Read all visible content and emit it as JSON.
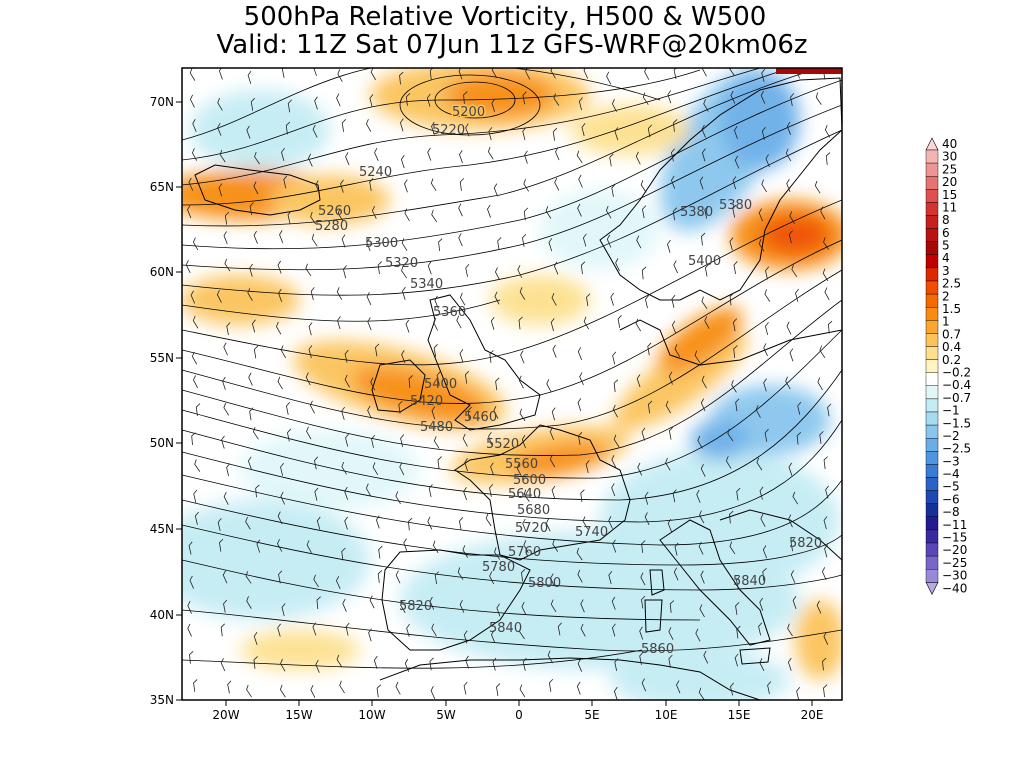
{
  "title": {
    "line1": "500hPa Relative Vorticity, H500 & W500",
    "line2": "Valid: 11Z Sat 07Jun 11z GFS-WRF@20km06z"
  },
  "map": {
    "lon_range": [
      -23,
      22
    ],
    "lat_range": [
      35,
      72
    ],
    "lat_ticks": [
      "35N",
      "40N",
      "45N",
      "50N",
      "55N",
      "60N",
      "65N",
      "70N"
    ],
    "lon_ticks": [
      "20W",
      "15W",
      "10W",
      "5W",
      "0",
      "5E",
      "10E",
      "15E",
      "20E"
    ],
    "contour_labels": [
      "5200",
      "5220",
      "5240",
      "5260",
      "5280",
      "5300",
      "5320",
      "5340",
      "5360",
      "5380",
      "5400",
      "5420",
      "5460",
      "5480",
      "5520",
      "5560",
      "5600",
      "5640",
      "5680",
      "5720",
      "5740",
      "5760",
      "5780",
      "5800",
      "5820",
      "5840",
      "5860",
      "5380",
      "5400",
      "5820",
      "5840"
    ]
  },
  "colorbar": {
    "labels": [
      "40",
      "30",
      "25",
      "20",
      "15",
      "11",
      "8",
      "6",
      "5",
      "4",
      "3",
      "2.5",
      "2",
      "1.5",
      "1",
      "0.7",
      "0.4",
      "0.2",
      "−0.2",
      "−0.4",
      "−0.7",
      "−1",
      "−1.5",
      "−2",
      "−2.5",
      "−3",
      "−4",
      "−5",
      "−6",
      "−8",
      "−11",
      "−15",
      "−20",
      "−25",
      "−30",
      "−40"
    ],
    "colors": [
      "#fbd7d7",
      "#f4b4b4",
      "#ee9494",
      "#e77272",
      "#e05050",
      "#d73232",
      "#c81e1e",
      "#b81212",
      "#a60808",
      "#c00000",
      "#e02800",
      "#f04e00",
      "#f46a00",
      "#f78c10",
      "#faa630",
      "#fbc35a",
      "#fde08d",
      "#fff4c2",
      "#ffffff",
      "#e0f7f9",
      "#c4ecf4",
      "#a6dbf0",
      "#88c6ee",
      "#6aaee8",
      "#4f95e0",
      "#3a7bd6",
      "#2a62c8",
      "#1e48b4",
      "#16309a",
      "#221c8e",
      "#3a2aa0",
      "#5a46b8",
      "#7a66c8",
      "#9a88d8",
      "#b8aae4"
    ]
  }
}
